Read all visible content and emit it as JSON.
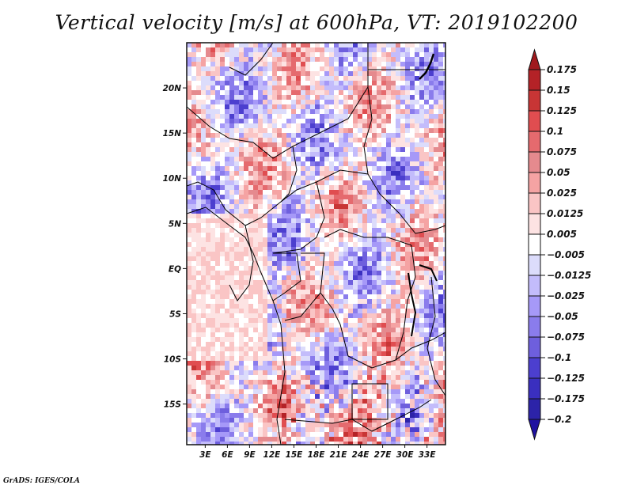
{
  "chart_data": {
    "type": "heatmap",
    "title": "Vertical velocity [m/s] at 600hPa, VT: 2019102200",
    "variable": "Vertical velocity",
    "units": "m/s",
    "level": "600hPa",
    "valid_time": "2019102200",
    "xlabel": "",
    "ylabel": "",
    "x_ticks": [
      "3E",
      "6E",
      "9E",
      "12E",
      "15E",
      "18E",
      "21E",
      "24E",
      "27E",
      "30E",
      "33E"
    ],
    "x_tick_values": [
      3,
      6,
      9,
      12,
      15,
      18,
      21,
      24,
      27,
      30,
      33
    ],
    "y_ticks": [
      "20N",
      "15N",
      "10N",
      "5N",
      "EQ",
      "5S",
      "10S",
      "15S"
    ],
    "y_tick_values": [
      20,
      15,
      10,
      5,
      0,
      -5,
      -10,
      -15
    ],
    "xlim": [
      0.5,
      35.5
    ],
    "ylim": [
      -19.5,
      25
    ],
    "colorbar": {
      "levels": [
        0.175,
        0.15,
        0.125,
        0.1,
        0.075,
        0.05,
        0.025,
        0.0125,
        0.005,
        -0.005,
        -0.0125,
        -0.025,
        -0.05,
        -0.075,
        -0.1,
        -0.125,
        -0.175,
        -0.2
      ],
      "labels": [
        "0.175",
        "0.15",
        "0.125",
        "0.1",
        "0.075",
        "0.05",
        "0.025",
        "0.0125",
        "0.005",
        "−0.005",
        "−0.0125",
        "−0.025",
        "−0.05",
        "−0.075",
        "−0.1",
        "−0.125",
        "−0.175",
        "−0.2"
      ],
      "colors": [
        "#a01a1e",
        "#b42227",
        "#c83535",
        "#e04d50",
        "#e56a6e",
        "#e58a8e",
        "#f5a3a3",
        "#fac5c5",
        "#fde3e3",
        "#ffffff",
        "#dcdcfb",
        "#c3bcfb",
        "#a699f8",
        "#8a7cec",
        "#6e5fdd",
        "#4c3fcf",
        "#3a2fbf",
        "#2c23a8",
        "#1f12a0"
      ],
      "extend": "both",
      "orientation": "vertical"
    },
    "map_region": "Central Africa",
    "features": [
      "country borders",
      "coastlines",
      "lakes"
    ]
  },
  "credit": "GrADS: IGES/COLA"
}
